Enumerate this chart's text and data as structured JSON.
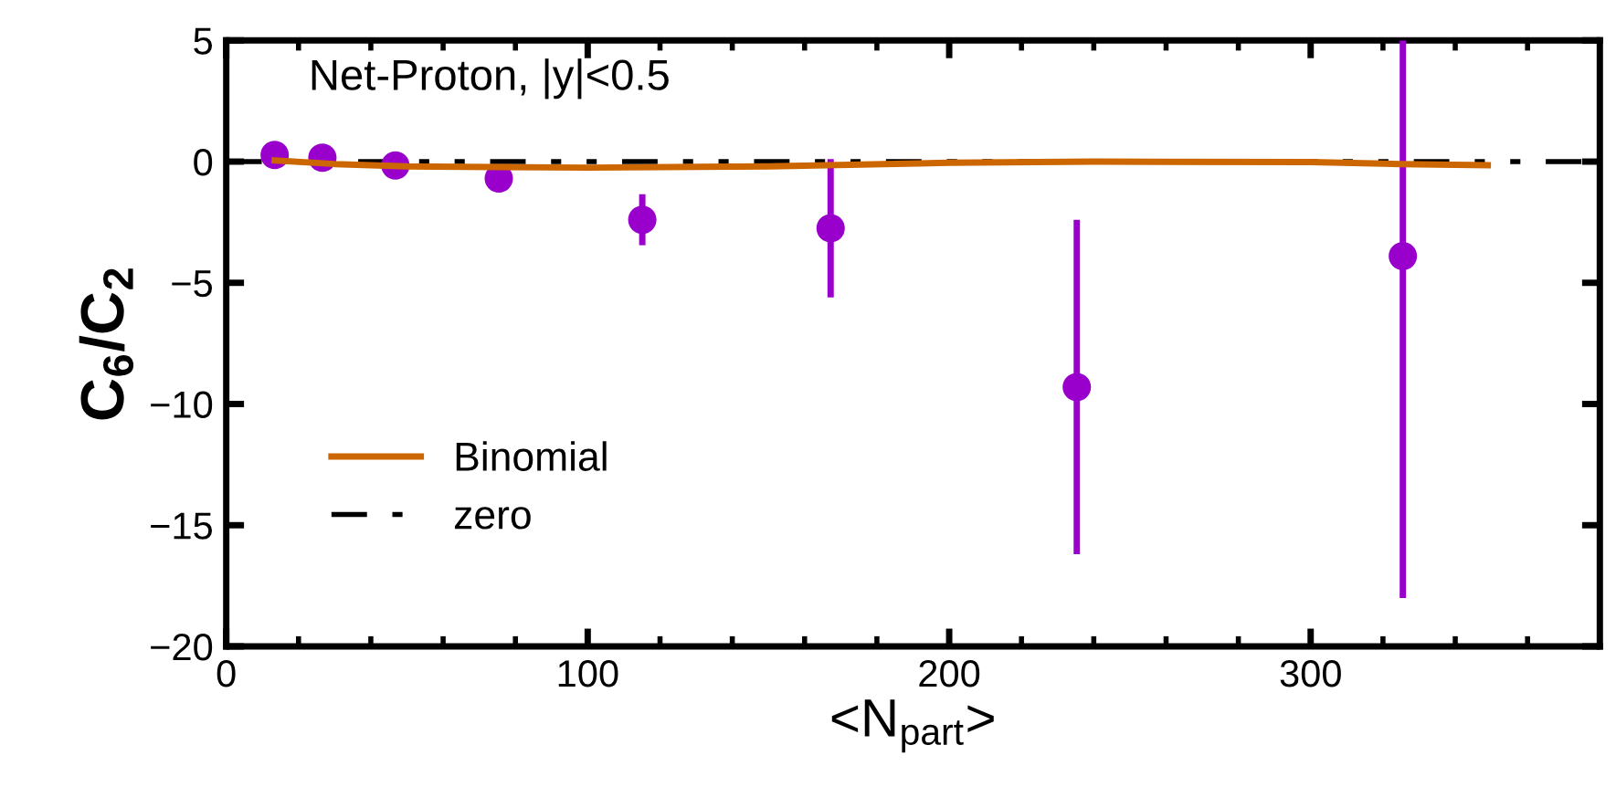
{
  "chart_data": {
    "type": "scatter",
    "xlabel": "<N$_{part}$>",
    "ylabel": "C$_{6}$/C$_{2}$",
    "annotations": [
      "Net-Proton, |y|<0.5"
    ],
    "xlim": [
      0,
      380
    ],
    "ylim": [
      -20,
      5
    ],
    "xticks": [
      0,
      {
        "value": 20,
        "label": null
      },
      {
        "value": 40,
        "label": null
      },
      {
        "value": 60,
        "label": null
      },
      {
        "value": 80,
        "label": null
      },
      100,
      {
        "value": 120,
        "label": null
      },
      {
        "value": 140,
        "label": null
      },
      {
        "value": 160,
        "label": null
      },
      {
        "value": 180,
        "label": null
      },
      200,
      {
        "value": 220,
        "label": null
      },
      {
        "value": 240,
        "label": null
      },
      {
        "value": 260,
        "label": null
      },
      {
        "value": 280,
        "label": null
      },
      300,
      {
        "value": 320,
        "label": null
      },
      {
        "value": 340,
        "label": null
      },
      {
        "value": 360,
        "label": null
      }
    ],
    "yticks": [
      -20,
      -15,
      -10,
      -5,
      0,
      5
    ],
    "grid": false,
    "legend": "bottom left",
    "series": [
      {
        "color": "#9900cc",
        "marker": "circle",
        "x": [
          13.4,
          26.6,
          46.8,
          75.4,
          115.1,
          167.2,
          235.3,
          325.5
        ],
        "values": [
          0.27,
          0.16,
          -0.16,
          -0.7,
          -2.4,
          -2.75,
          -9.3,
          -3.9
        ],
        "errors": [
          null,
          null,
          null,
          null,
          1.05,
          2.85,
          6.9,
          [
            -18.0,
            5
          ]
        ]
      },
      {
        "type": "line",
        "name": "Binomial",
        "color": "#cc6600",
        "line_style": "solid",
        "marker": "none",
        "x": [
          13.4,
          30,
          50,
          100,
          150,
          200,
          240,
          300,
          325,
          349
        ],
        "values": [
          0.05,
          -0.1,
          -0.2,
          -0.25,
          -0.2,
          -0.05,
          0.0,
          -0.02,
          -0.1,
          -0.15
        ]
      },
      {
        "type": "line",
        "name": "zero",
        "color": "#000000",
        "line_style": "dotted",
        "marker": "none",
        "x": [
          0,
          380
        ],
        "values": [
          0,
          0
        ]
      }
    ]
  }
}
